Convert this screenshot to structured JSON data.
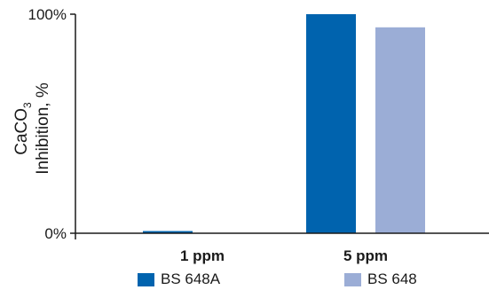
{
  "chart_data": {
    "type": "bar",
    "categories": [
      "1 ppm",
      "5 ppm"
    ],
    "series": [
      {
        "name": "BS 648A",
        "color": "#0063ae",
        "values": [
          1,
          100
        ]
      },
      {
        "name": "BS 648",
        "color": "#9badd6",
        "values": [
          0,
          94
        ]
      }
    ],
    "ylim": [
      0,
      100
    ],
    "yticks": [
      {
        "value": 0,
        "label": "0%"
      },
      {
        "value": 100,
        "label": "100%"
      }
    ],
    "ylabel": {
      "line1_main": "CaCO",
      "line1_sub": "3",
      "line2": "Inhibition, %"
    },
    "legend_position": "bottom"
  }
}
